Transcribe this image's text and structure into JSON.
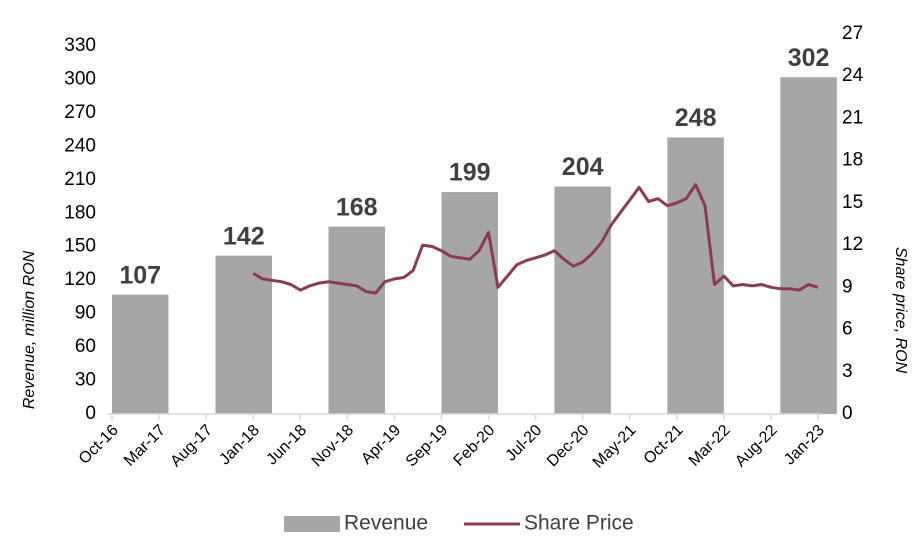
{
  "chart_data": {
    "type": "combo",
    "y_label": "Revenue, million RON",
    "y2_label": "Share price, RON",
    "xlim": [
      "Oct-16",
      "Jan-23"
    ],
    "xticks": [
      "Oct-16",
      "Mar-17",
      "Aug-17",
      "Jan-18",
      "Jun-18",
      "Nov-18",
      "Apr-19",
      "Sep-19",
      "Feb-20",
      "Jul-20",
      "Dec-20",
      "May-21",
      "Oct-21",
      "Mar-22",
      "Aug-22",
      "Jan-23"
    ],
    "ylim": [
      0,
      330
    ],
    "yticks": [
      0,
      30,
      60,
      90,
      120,
      150,
      180,
      210,
      240,
      270,
      300,
      330
    ],
    "y2lim": [
      0,
      27
    ],
    "y2ticks": [
      0,
      3,
      6,
      9,
      12,
      15,
      18,
      21,
      24,
      27
    ],
    "legend": "bottom",
    "series": [
      {
        "name": "Revenue",
        "type": "bar",
        "color": "#a6a6a6",
        "x": [
          "Jan-17",
          "Dec-17",
          "Dec-18",
          "Dec-19",
          "Dec-20",
          "Dec-21",
          "Dec-22"
        ],
        "values": [
          107,
          142,
          168,
          199,
          204,
          248,
          302
        ]
      },
      {
        "name": "Share Price",
        "type": "line",
        "axis": "y2",
        "color": "#8b3a55",
        "x": [
          "Jan-18",
          "Feb-18",
          "Mar-18",
          "Apr-18",
          "May-18",
          "Jun-18",
          "Jul-18",
          "Aug-18",
          "Sep-18",
          "Oct-18",
          "Nov-18",
          "Dec-18",
          "Jan-19",
          "Feb-19",
          "Mar-19",
          "Apr-19",
          "May-19",
          "Jun-19",
          "Jul-19",
          "Aug-19",
          "Sep-19",
          "Oct-19",
          "Nov-19",
          "Dec-19",
          "Jan-20",
          "Feb-20",
          "Mar-20",
          "Apr-20",
          "May-20",
          "Jun-20",
          "Jul-20",
          "Aug-20",
          "Sep-20",
          "Oct-20",
          "Nov-20",
          "Dec-20",
          "Jan-21",
          "Feb-21",
          "Mar-21",
          "Apr-21",
          "May-21",
          "Jun-21",
          "Jul-21",
          "Aug-21",
          "Sep-21",
          "Oct-21",
          "Nov-21",
          "Dec-21",
          "Jan-22",
          "Feb-22",
          "Mar-22",
          "Apr-22",
          "May-22",
          "Jun-22",
          "Jul-22",
          "Aug-22",
          "Sep-22",
          "Oct-22",
          "Nov-22",
          "Dec-22",
          "Jan-23"
        ],
        "values": [
          10.0,
          9.6,
          9.5,
          9.4,
          9.2,
          8.8,
          9.1,
          9.3,
          9.4,
          9.3,
          9.2,
          9.1,
          8.7,
          8.6,
          9.4,
          9.6,
          9.7,
          10.2,
          12.0,
          11.9,
          11.6,
          11.2,
          11.1,
          11.0,
          11.6,
          12.9,
          9.0,
          9.8,
          10.6,
          10.9,
          11.1,
          11.3,
          11.6,
          11.0,
          10.5,
          10.8,
          11.4,
          12.2,
          13.4,
          14.3,
          15.2,
          16.1,
          15.1,
          15.3,
          14.8,
          15.0,
          15.3,
          16.3,
          14.8,
          9.2,
          9.8,
          9.1,
          9.2,
          9.1,
          9.2,
          9.0,
          8.9,
          8.9,
          8.8,
          9.2,
          9.0
        ]
      }
    ]
  }
}
